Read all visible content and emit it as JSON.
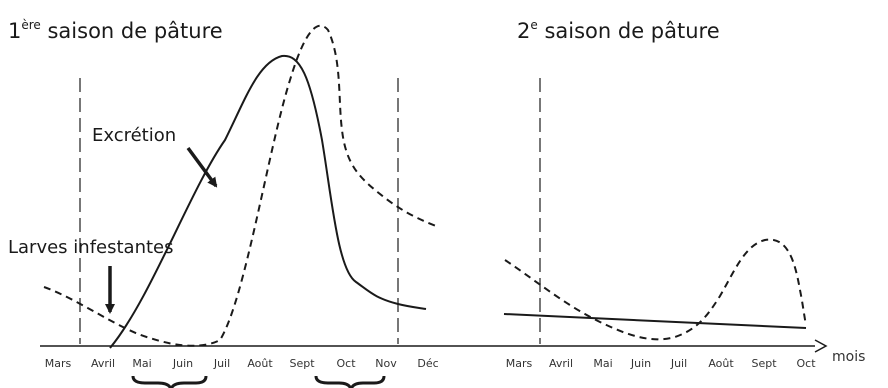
{
  "season1": {
    "title_main": "1",
    "title_sup": "ère",
    "title_rest": " saison de pâture",
    "months": [
      "Mars",
      "Avril",
      "Mai",
      "Juin",
      "Juil",
      "Août",
      "Sept",
      "Oct",
      "Nov",
      "Déc"
    ]
  },
  "season2": {
    "title_main": "2",
    "title_sup": "e",
    "title_rest": " saison de pâture",
    "months": [
      "Mars",
      "Avril",
      "Mai",
      "Juin",
      "Juil",
      "Août",
      "Sept",
      "Oct"
    ]
  },
  "labels": {
    "excretion": "Excrétion",
    "larves": "Larves infestantes",
    "axis_unit": "mois"
  },
  "legend_styles": {
    "excretion": "solid line",
    "larves": "dashed line"
  },
  "colors": {
    "ink": "#1a1a1a",
    "guide": "#777777"
  },
  "icons": [
    "arrow-icon",
    "brace-icon"
  ]
}
